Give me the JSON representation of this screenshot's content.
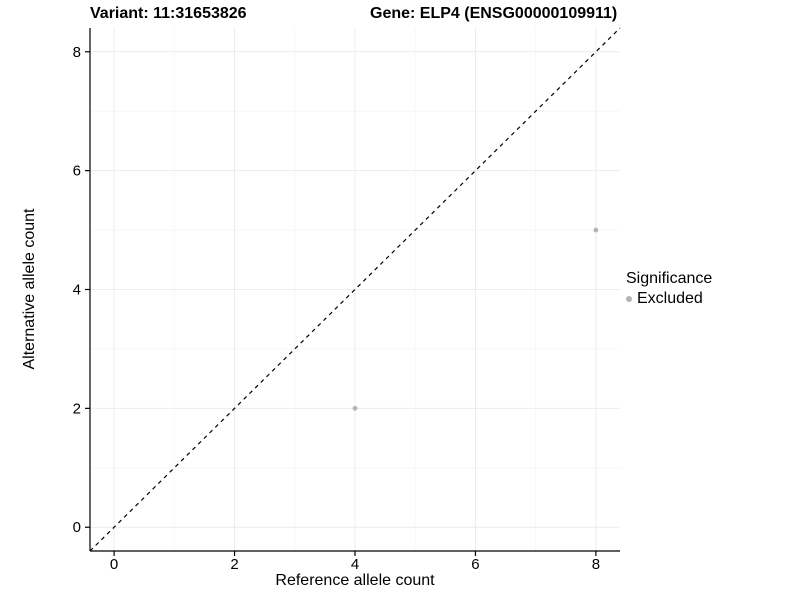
{
  "chart_data": {
    "type": "scatter",
    "title_left": "Variant: 11:31653826",
    "title_right": "Gene: ELP4 (ENSG00000109911)",
    "xlabel": "Reference allele count",
    "ylabel": "Alternative allele count",
    "xlim": [
      -0.4,
      8.4
    ],
    "ylim": [
      -0.4,
      8.4
    ],
    "xticks": [
      0,
      2,
      4,
      6,
      8
    ],
    "yticks": [
      0,
      2,
      4,
      6,
      8
    ],
    "xminor": [
      1,
      3,
      5,
      7
    ],
    "yminor": [
      1,
      3,
      5,
      7
    ],
    "grid": true,
    "diagonal_line": {
      "style": "dashed",
      "from": [
        -0.4,
        -0.4
      ],
      "to": [
        8.4,
        8.4
      ]
    },
    "series": [
      {
        "name": "Excluded",
        "color": "#b4b4b4",
        "points": [
          {
            "x": 4,
            "y": 2
          },
          {
            "x": 8,
            "y": 5
          }
        ]
      }
    ],
    "legend": {
      "title": "Significance",
      "position": "right",
      "items": [
        {
          "label": "Excluded",
          "color": "#b4b4b4"
        }
      ]
    },
    "colors": {
      "grid_major": "#ececec",
      "grid_minor": "#f7f7f7",
      "axis": "#000000",
      "diagonal": "#000000",
      "tick_text": "#000000"
    }
  }
}
